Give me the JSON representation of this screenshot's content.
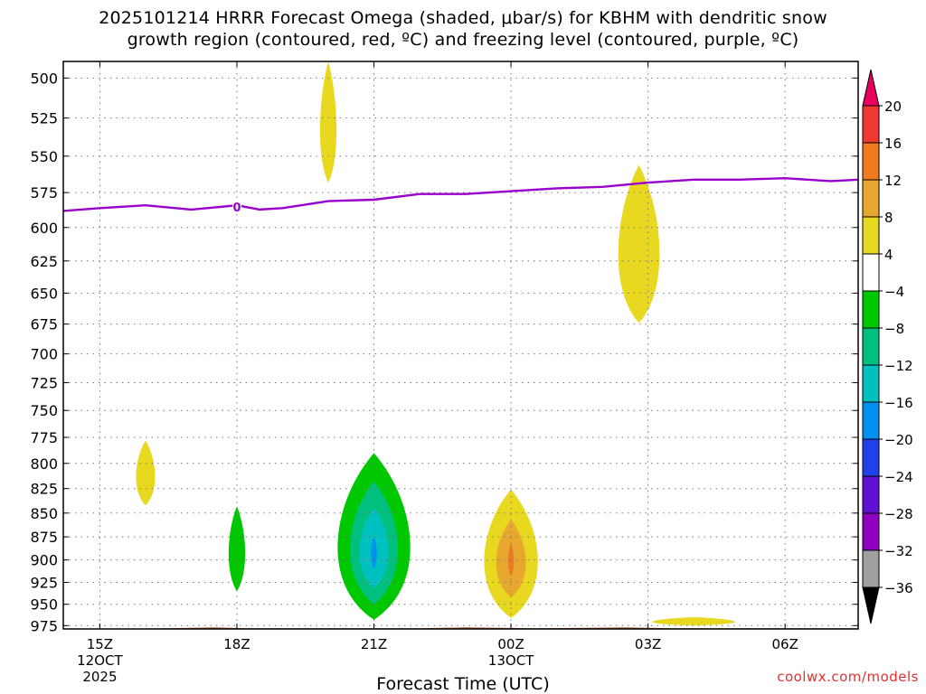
{
  "header": {
    "title_line1": "2025101214 HRRR Forecast Omega (shaded, μbar/s) for KBHM with dendritic snow",
    "title_line2": "growth region (contoured, red, ºC) and freezing level (contoured, purple, ºC)"
  },
  "footer": {
    "credit": "coolwx.com/models"
  },
  "chart_data": {
    "type": "time-height cross section",
    "title": "2025101214 HRRR Forecast Omega (shaded, μbar/s) for KBHM with dendritic snow growth region (contoured, red, ºC) and freezing level (contoured, purple, ºC)",
    "xlabel": "Forecast Time (UTC)",
    "ylabel": "",
    "x_hours_range": [
      14.2,
      31.6
    ],
    "y_pressure_range_hPa": [
      979,
      490
    ],
    "y_ticks": [
      500,
      525,
      550,
      575,
      600,
      625,
      650,
      675,
      700,
      725,
      750,
      775,
      800,
      825,
      850,
      875,
      900,
      925,
      950,
      975
    ],
    "x_ticks": [
      {
        "hour": 15,
        "label": "15Z",
        "sub1": "12OCT",
        "sub2": "2025"
      },
      {
        "hour": 18,
        "label": "18Z",
        "sub1": "",
        "sub2": ""
      },
      {
        "hour": 21,
        "label": "21Z",
        "sub1": "",
        "sub2": ""
      },
      {
        "hour": 24,
        "label": "00Z",
        "sub1": "13OCT",
        "sub2": ""
      },
      {
        "hour": 27,
        "label": "03Z",
        "sub1": "",
        "sub2": ""
      },
      {
        "hour": 30,
        "label": "06Z",
        "sub1": "",
        "sub2": ""
      }
    ],
    "grid": true,
    "colorbar": {
      "labels": [
        "20",
        "16",
        "12",
        "8",
        "4",
        "−4",
        "−8",
        "−12",
        "−16",
        "−20",
        "−24",
        "−28",
        "−32",
        "−36"
      ],
      "colors": [
        "#e8005c",
        "#ee3830",
        "#f07a20",
        "#e8a830",
        "#e8d820",
        "#ffffff",
        "#00c800",
        "#00c080",
        "#00c0c0",
        "#0090f0",
        "#2040e8",
        "#6010d0",
        "#9000c0",
        "#a0a0a0",
        "#000000"
      ]
    },
    "freezing_level": {
      "label": "0",
      "color": "#9900cc",
      "points": [
        [
          14.2,
          588
        ],
        [
          15,
          586
        ],
        [
          16,
          584
        ],
        [
          17,
          587
        ],
        [
          18,
          584
        ],
        [
          18.5,
          587
        ],
        [
          19,
          586
        ],
        [
          20,
          581
        ],
        [
          21,
          580
        ],
        [
          22,
          576
        ],
        [
          23,
          576
        ],
        [
          24,
          574
        ],
        [
          25,
          572
        ],
        [
          26,
          571
        ],
        [
          27,
          568
        ],
        [
          28,
          566
        ],
        [
          29,
          566
        ],
        [
          30,
          565
        ],
        [
          31,
          567
        ],
        [
          31.6,
          566
        ]
      ]
    },
    "omega_regions": [
      {
        "name": "upward-green-21z",
        "value": -6,
        "color": "#00c800",
        "center_hour": 21.0,
        "center_hPa": 880,
        "half_width_hours": 0.88,
        "top_hPa": 790,
        "bottom_hPa": 968
      },
      {
        "name": "upward-teal-21z",
        "value": -10,
        "color": "#00c080",
        "center_hour": 21.0,
        "center_hPa": 880,
        "half_width_hours": 0.58,
        "top_hPa": 818,
        "bottom_hPa": 950
      },
      {
        "name": "upward-cyan-21z",
        "value": -14,
        "color": "#00c0c0",
        "center_hour": 21.0,
        "center_hPa": 885,
        "half_width_hours": 0.35,
        "top_hPa": 845,
        "bottom_hPa": 932
      },
      {
        "name": "upward-blue-21z",
        "value": -18,
        "color": "#0090f0",
        "center_hour": 21.0,
        "center_hPa": 890,
        "half_width_hours": 0.07,
        "top_hPa": 875,
        "bottom_hPa": 910
      },
      {
        "name": "upward-green-18z",
        "value": -6,
        "color": "#00c800",
        "center_hour": 18.0,
        "center_hPa": 888,
        "half_width_hours": 0.2,
        "top_hPa": 843,
        "bottom_hPa": 935
      },
      {
        "name": "sinking-yellow-00z",
        "value": 6,
        "color": "#e8d820",
        "center_hour": 24.0,
        "center_hPa": 895,
        "half_width_hours": 0.65,
        "top_hPa": 826,
        "bottom_hPa": 966
      },
      {
        "name": "sinking-gold-00z",
        "value": 10,
        "color": "#e8a830",
        "center_hour": 24.0,
        "center_hPa": 898,
        "half_width_hours": 0.36,
        "top_hPa": 857,
        "bottom_hPa": 942
      },
      {
        "name": "sinking-orange-00z",
        "value": 14,
        "color": "#f07a20",
        "center_hour": 24.0,
        "center_hPa": 898,
        "half_width_hours": 0.07,
        "top_hPa": 882,
        "bottom_hPa": 918
      },
      {
        "name": "sinking-yellow-20z",
        "value": 6,
        "color": "#e8d820",
        "center_hour": 20.0,
        "center_hPa": 530,
        "half_width_hours": 0.2,
        "top_hPa": 490,
        "bottom_hPa": 568
      },
      {
        "name": "sinking-yellow-03z",
        "value": 6,
        "color": "#e8d820",
        "center_hour": 26.8,
        "center_hPa": 615,
        "half_width_hours": 0.5,
        "top_hPa": 556,
        "bottom_hPa": 674
      },
      {
        "name": "sinking-yellow-16z",
        "value": 6,
        "color": "#e8d820",
        "center_hour": 16.0,
        "center_hPa": 810,
        "half_width_hours": 0.23,
        "top_hPa": 778,
        "bottom_hPa": 842
      },
      {
        "name": "sinking-yellow-04z",
        "value": 6,
        "color": "#e8d820",
        "center_hour": 28.0,
        "center_hPa": 970,
        "half_width_hours": 1.0,
        "top_hPa": 965,
        "bottom_hPa": 975
      }
    ],
    "ground": {
      "color": "#a85a30",
      "top_hPa": 975
    }
  }
}
